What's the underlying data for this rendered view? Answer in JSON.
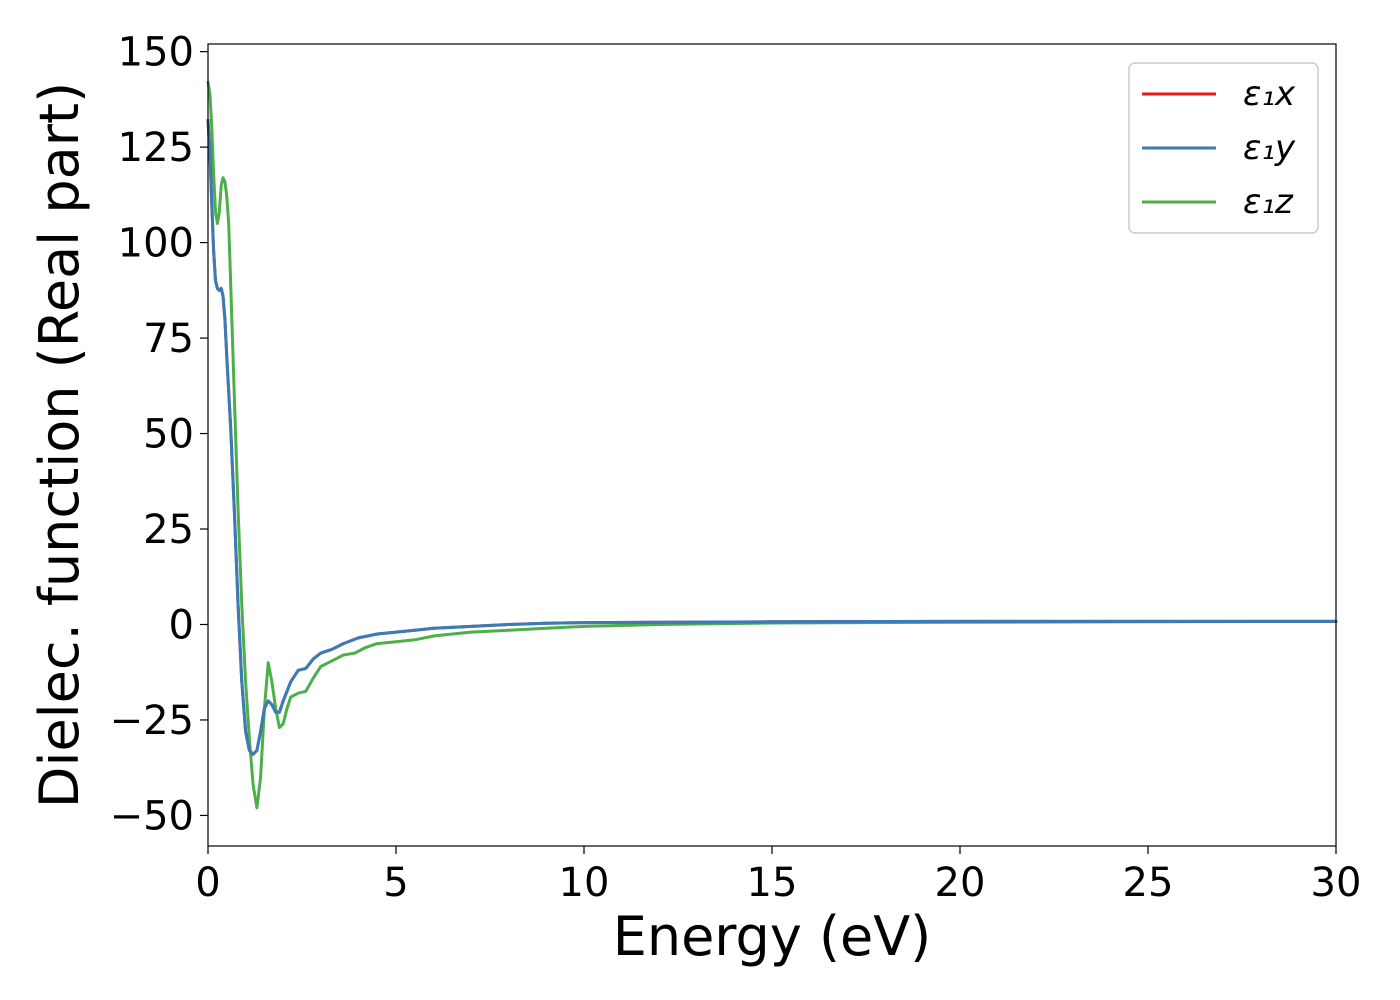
{
  "chart_data": {
    "type": "line",
    "xlabel": "Energy (eV)",
    "ylabel": "Dielec. function (Real part)",
    "xlim": [
      0,
      30
    ],
    "ylim": [
      -58,
      152
    ],
    "xticks": [
      0,
      5,
      10,
      15,
      20,
      25,
      30
    ],
    "xtick_labels": [
      "0",
      "5",
      "10",
      "15",
      "20",
      "25",
      "30"
    ],
    "yticks": [
      -50,
      -25,
      0,
      25,
      50,
      75,
      100,
      125,
      150
    ],
    "ytick_labels": [
      "−50",
      "−25",
      "0",
      "25",
      "50",
      "75",
      "100",
      "125",
      "150"
    ],
    "grid": false,
    "legend_position": "top-right",
    "series": [
      {
        "name": "ε₁x",
        "color": "#e41a1c",
        "x": [
          0,
          0.05,
          0.1,
          0.15,
          0.2,
          0.25,
          0.3,
          0.35,
          0.4,
          0.45,
          0.5,
          0.6,
          0.7,
          0.8,
          0.9,
          1.0,
          1.1,
          1.2,
          1.3,
          1.4,
          1.5,
          1.6,
          1.7,
          1.8,
          1.9,
          2.0,
          2.2,
          2.4,
          2.6,
          2.8,
          3.0,
          3.3,
          3.6,
          4.0,
          4.5,
          5.0,
          5.5,
          6.0,
          7.0,
          8.0,
          9.0,
          10,
          12,
          15,
          20,
          25,
          30
        ],
        "values": [
          132,
          124,
          110,
          98,
          90,
          88,
          87.5,
          88,
          86,
          80,
          70,
          52,
          30,
          5,
          -15,
          -28,
          -33,
          -34,
          -33,
          -28,
          -22,
          -20,
          -21,
          -23,
          -23,
          -20,
          -15,
          -12,
          -11.5,
          -9,
          -7.5,
          -6.5,
          -5,
          -3.5,
          -2.5,
          -2,
          -1.5,
          -1,
          -0.5,
          0,
          0.3,
          0.5,
          0.6,
          0.7,
          0.8,
          0.8,
          0.8
        ]
      },
      {
        "name": "ε₁y",
        "color": "#377eb8",
        "x": [
          0,
          0.05,
          0.1,
          0.15,
          0.2,
          0.25,
          0.3,
          0.35,
          0.4,
          0.45,
          0.5,
          0.6,
          0.7,
          0.8,
          0.9,
          1.0,
          1.1,
          1.2,
          1.3,
          1.4,
          1.5,
          1.6,
          1.7,
          1.8,
          1.9,
          2.0,
          2.2,
          2.4,
          2.6,
          2.8,
          3.0,
          3.3,
          3.6,
          4.0,
          4.5,
          5.0,
          5.5,
          6.0,
          7.0,
          8.0,
          9.0,
          10,
          12,
          15,
          20,
          25,
          30
        ],
        "values": [
          132,
          124,
          110,
          98,
          90,
          88,
          87.5,
          88,
          86,
          80,
          70,
          52,
          30,
          5,
          -15,
          -28,
          -33,
          -34,
          -33,
          -28,
          -22,
          -20,
          -21,
          -23,
          -23,
          -20,
          -15,
          -12,
          -11.5,
          -9,
          -7.5,
          -6.5,
          -5,
          -3.5,
          -2.5,
          -2,
          -1.5,
          -1,
          -0.5,
          0,
          0.3,
          0.5,
          0.6,
          0.7,
          0.8,
          0.8,
          0.8
        ]
      },
      {
        "name": "ε₁z",
        "color": "#4daf4a",
        "x": [
          0,
          0.05,
          0.1,
          0.15,
          0.2,
          0.25,
          0.3,
          0.35,
          0.4,
          0.45,
          0.5,
          0.55,
          0.6,
          0.7,
          0.8,
          0.9,
          1.0,
          1.1,
          1.2,
          1.3,
          1.4,
          1.5,
          1.6,
          1.7,
          1.8,
          1.9,
          2.0,
          2.1,
          2.2,
          2.4,
          2.6,
          2.8,
          3.0,
          3.3,
          3.6,
          3.9,
          4.2,
          4.5,
          5.0,
          5.5,
          6.0,
          6.5,
          7.0,
          8.0,
          9.0,
          10,
          12,
          15,
          20,
          25,
          30
        ],
        "values": [
          142,
          139,
          130,
          118,
          108,
          105,
          108,
          115,
          117,
          116,
          112,
          105,
          90,
          60,
          30,
          5,
          -15,
          -30,
          -42,
          -48,
          -40,
          -22,
          -10,
          -15,
          -22,
          -27,
          -26,
          -22,
          -19,
          -18,
          -17.5,
          -14,
          -11,
          -9.5,
          -8,
          -7.5,
          -6,
          -5,
          -4.5,
          -4,
          -3,
          -2.5,
          -2,
          -1.5,
          -1,
          -0.5,
          0,
          0.4,
          0.6,
          0.7,
          0.8
        ]
      }
    ]
  }
}
